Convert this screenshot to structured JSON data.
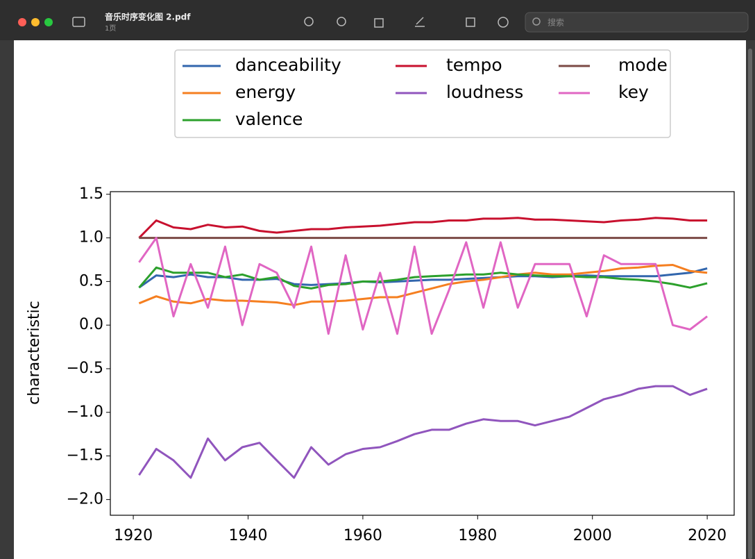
{
  "window": {
    "title": "音乐时序变化图 2.pdf",
    "subtitle": "1页",
    "search_placeholder": "搜索"
  },
  "chart_data": {
    "type": "line",
    "ylabel": "characteristic",
    "x": [
      1921,
      1924,
      1927,
      1930,
      1933,
      1936,
      1939,
      1942,
      1945,
      1948,
      1951,
      1954,
      1957,
      1960,
      1963,
      1966,
      1969,
      1972,
      1975,
      1978,
      1981,
      1984,
      1987,
      1990,
      1993,
      1996,
      1999,
      2002,
      2005,
      2008,
      2011,
      2014,
      2017,
      2020
    ],
    "series": [
      {
        "name": "danceability",
        "color": "#3266ad",
        "values": [
          0.43,
          0.57,
          0.55,
          0.58,
          0.55,
          0.55,
          0.52,
          0.52,
          0.53,
          0.47,
          0.46,
          0.47,
          0.48,
          0.5,
          0.49,
          0.5,
          0.51,
          0.52,
          0.52,
          0.53,
          0.54,
          0.55,
          0.56,
          0.56,
          0.55,
          0.56,
          0.57,
          0.56,
          0.56,
          0.56,
          0.56,
          0.58,
          0.6,
          0.65
        ]
      },
      {
        "name": "energy",
        "color": "#f57f20",
        "values": [
          0.25,
          0.33,
          0.27,
          0.25,
          0.3,
          0.28,
          0.28,
          0.27,
          0.26,
          0.23,
          0.27,
          0.27,
          0.28,
          0.3,
          0.32,
          0.32,
          0.37,
          0.42,
          0.47,
          0.5,
          0.52,
          0.55,
          0.58,
          0.6,
          0.58,
          0.58,
          0.6,
          0.62,
          0.65,
          0.66,
          0.68,
          0.69,
          0.62,
          0.6
        ]
      },
      {
        "name": "valence",
        "color": "#2ca02c",
        "values": [
          0.43,
          0.66,
          0.6,
          0.6,
          0.6,
          0.55,
          0.58,
          0.52,
          0.55,
          0.45,
          0.42,
          0.46,
          0.47,
          0.5,
          0.5,
          0.52,
          0.55,
          0.56,
          0.57,
          0.58,
          0.58,
          0.6,
          0.58,
          0.57,
          0.56,
          0.56,
          0.55,
          0.55,
          0.53,
          0.52,
          0.5,
          0.47,
          0.43,
          0.48
        ]
      },
      {
        "name": "tempo",
        "color": "#c8102e",
        "values": [
          1.0,
          1.2,
          1.12,
          1.1,
          1.15,
          1.12,
          1.13,
          1.08,
          1.06,
          1.08,
          1.1,
          1.1,
          1.12,
          1.13,
          1.14,
          1.16,
          1.18,
          1.18,
          1.2,
          1.2,
          1.22,
          1.22,
          1.23,
          1.21,
          1.21,
          1.2,
          1.19,
          1.18,
          1.2,
          1.21,
          1.23,
          1.22,
          1.2,
          1.2
        ]
      },
      {
        "name": "loudness",
        "color": "#9055bd",
        "values": [
          -1.72,
          -1.42,
          -1.55,
          -1.75,
          -1.3,
          -1.55,
          -1.4,
          -1.35,
          -1.55,
          -1.75,
          -1.4,
          -1.6,
          -1.48,
          -1.42,
          -1.4,
          -1.33,
          -1.25,
          -1.2,
          -1.2,
          -1.13,
          -1.08,
          -1.1,
          -1.1,
          -1.15,
          -1.1,
          -1.05,
          -0.95,
          -0.85,
          -0.8,
          -0.73,
          -0.7,
          -0.7,
          -0.8,
          -0.73
        ]
      },
      {
        "name": "mode",
        "color": "#7b4a45",
        "values": [
          1.0,
          1.0,
          1.0,
          1.0,
          1.0,
          1.0,
          1.0,
          1.0,
          1.0,
          1.0,
          1.0,
          1.0,
          1.0,
          1.0,
          1.0,
          1.0,
          1.0,
          1.0,
          1.0,
          1.0,
          1.0,
          1.0,
          1.0,
          1.0,
          1.0,
          1.0,
          1.0,
          1.0,
          1.0,
          1.0,
          1.0,
          1.0,
          1.0,
          1.0
        ]
      },
      {
        "name": "key",
        "color": "#e066c3",
        "values": [
          0.72,
          1.0,
          0.1,
          0.7,
          0.2,
          0.9,
          0.0,
          0.7,
          0.6,
          0.2,
          0.9,
          -0.1,
          0.8,
          -0.05,
          0.6,
          -0.1,
          0.9,
          -0.1,
          0.4,
          0.95,
          0.2,
          0.95,
          0.2,
          0.7,
          0.7,
          0.7,
          0.1,
          0.8,
          0.7,
          0.7,
          0.7,
          0.0,
          -0.05,
          0.1
        ]
      }
    ],
    "xlim": [
      1916,
      2024.7
    ],
    "xticks": [
      1920,
      1940,
      1960,
      1980,
      2000,
      2020
    ],
    "ylim": [
      -2.18,
      1.53
    ],
    "yticks": [
      {
        "value": -2.0,
        "label": "−2.0"
      },
      {
        "value": -1.5,
        "label": "−1.5"
      },
      {
        "value": -1.0,
        "label": "−1.0"
      },
      {
        "value": -0.5,
        "label": "−0.5"
      },
      {
        "value": 0.0,
        "label": "0.0"
      },
      0.5,
      {
        "value": 1.0,
        "label": "1.0"
      },
      1.5
    ],
    "legend_columns": 3
  }
}
